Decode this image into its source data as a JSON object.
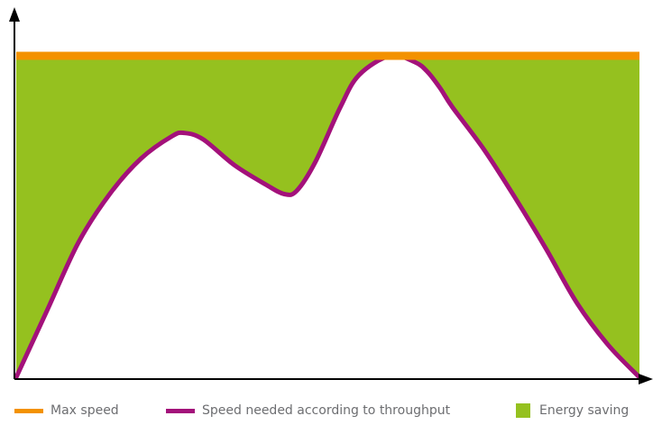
{
  "chart_data": {
    "type": "area",
    "title": "",
    "xlabel": "",
    "ylabel": "",
    "x_ticks": false,
    "y_ticks": false,
    "grid": false,
    "legend_position": "bottom",
    "max_speed": 1.0,
    "series": [
      {
        "name": "Speed needed according to throughput",
        "x": [
          0.0,
          0.05,
          0.1,
          0.15,
          0.2,
          0.25,
          0.27,
          0.3,
          0.35,
          0.4,
          0.43,
          0.45,
          0.48,
          0.52,
          0.55,
          0.6,
          0.64,
          0.66,
          0.68,
          0.7,
          0.75,
          0.8,
          0.85,
          0.9,
          0.95,
          1.0
        ],
        "values": [
          0.0,
          0.21,
          0.42,
          0.57,
          0.68,
          0.75,
          0.76,
          0.74,
          0.66,
          0.6,
          0.57,
          0.58,
          0.67,
          0.84,
          0.94,
          1.0,
          0.98,
          0.95,
          0.9,
          0.84,
          0.71,
          0.56,
          0.4,
          0.23,
          0.1,
          0.0
        ]
      }
    ],
    "legend": [
      {
        "label": "Max speed",
        "color": "#f39200",
        "kind": "line"
      },
      {
        "label": "Speed needed according to throughput",
        "color": "#a3117a",
        "kind": "line"
      },
      {
        "label": "Energy saving",
        "color": "#95c11f",
        "kind": "box"
      }
    ]
  }
}
